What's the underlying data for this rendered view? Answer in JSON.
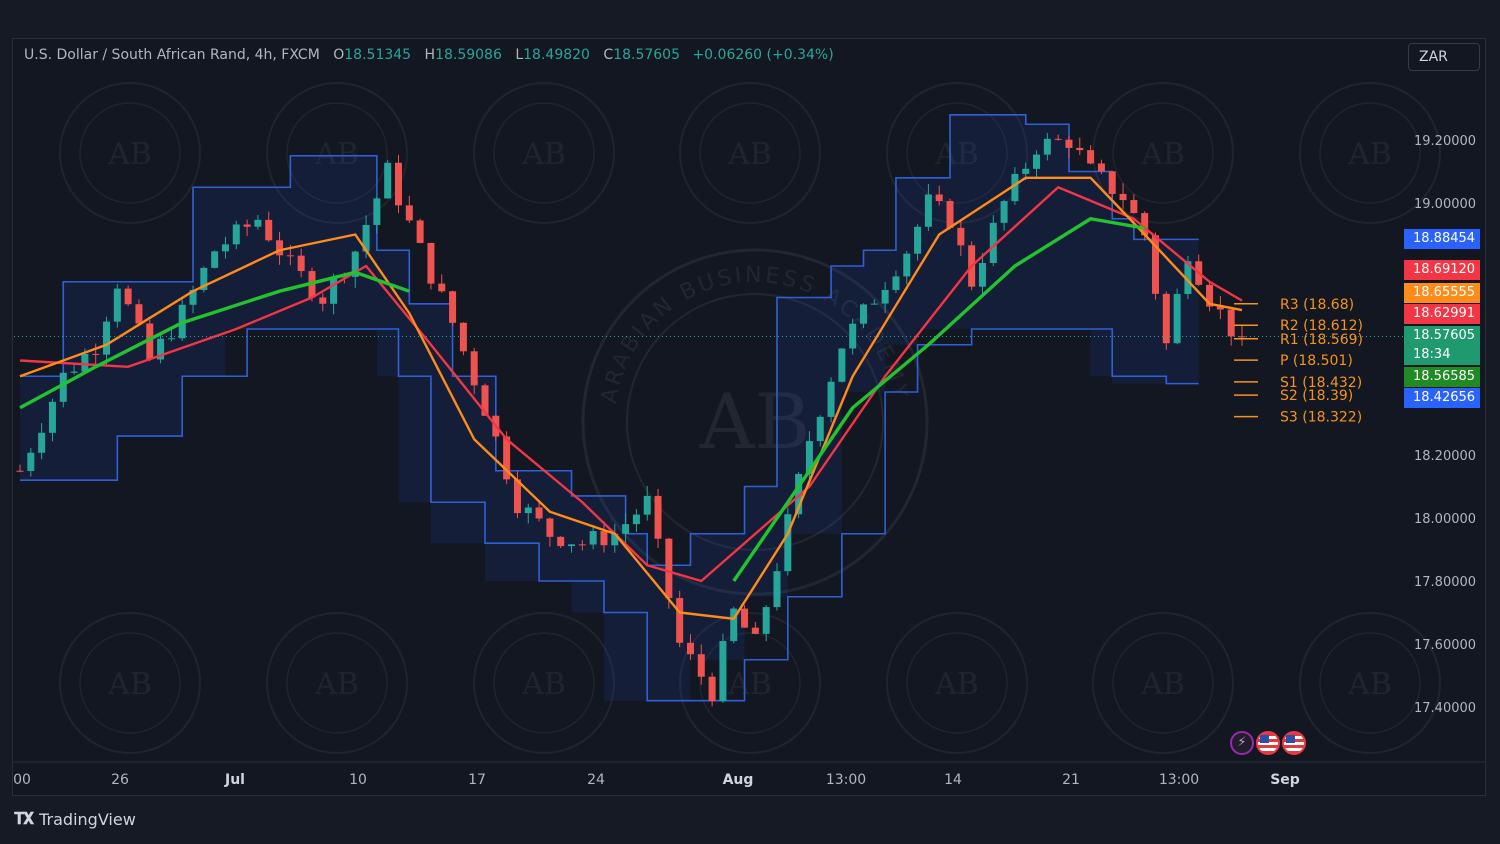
{
  "header": {
    "symbol": "U.S. Dollar / South African Rand, 4h, FXCM",
    "o_label": "O",
    "o": "18.51345",
    "h_label": "H",
    "h": "18.59086",
    "l_label": "L",
    "l": "18.49820",
    "c_label": "C",
    "c": "18.57605",
    "change": "+0.06260 (+0.34%)",
    "currency": "ZAR"
  },
  "footer": {
    "brand": "TradingView"
  },
  "price_tags": [
    {
      "text": "18.88454",
      "color": "#2962ff"
    },
    {
      "text": "18.69120",
      "color": "#f23645"
    },
    {
      "text": "18.65555",
      "color": "#ff8c1a"
    },
    {
      "text": "18.62991",
      "color": "#f23645"
    },
    {
      "text": "18.57605",
      "color": "#1f9a6e"
    },
    {
      "text": "18:34",
      "color": "#1f9a6e"
    },
    {
      "text": "18.56585",
      "color": "#1f8b24"
    },
    {
      "text": "18.42656",
      "color": "#2962ff"
    }
  ],
  "events": [
    {
      "icon": "lightning-icon"
    },
    {
      "icon": "us-flag-icon"
    },
    {
      "icon": "us-flag-icon"
    }
  ],
  "watermark": {
    "text": "ARABIAN BUSINESS ACADEMY",
    "monogram": "AB"
  },
  "chart_data": {
    "type": "candlestick",
    "symbol": "USDZAR",
    "timeframe": "4h",
    "x_ticks": [
      "00",
      "26",
      "Jul",
      "10",
      "17",
      "24",
      "Aug",
      "13:00",
      "14",
      "21",
      "13:00",
      "Sep"
    ],
    "y_ticks": [
      "19.20000",
      "19.00000",
      "18.20000",
      "18.00000",
      "17.80000",
      "17.60000",
      "17.40000"
    ],
    "ylim": [
      17.25,
      19.43
    ],
    "grid": false,
    "close_path": [
      [
        0,
        18.15
      ],
      [
        4,
        18.45
      ],
      [
        7,
        18.55
      ],
      [
        9,
        18.75
      ],
      [
        12,
        18.5
      ],
      [
        15,
        18.65
      ],
      [
        18,
        18.85
      ],
      [
        22,
        18.95
      ],
      [
        25,
        18.8
      ],
      [
        28,
        18.7
      ],
      [
        31,
        18.85
      ],
      [
        34,
        19.1
      ],
      [
        37,
        18.85
      ],
      [
        40,
        18.62
      ],
      [
        43,
        18.35
      ],
      [
        46,
        18.05
      ],
      [
        49,
        17.95
      ],
      [
        52,
        17.92
      ],
      [
        55,
        17.95
      ],
      [
        58,
        18.05
      ],
      [
        61,
        17.6
      ],
      [
        64,
        17.45
      ],
      [
        66,
        17.7
      ],
      [
        68,
        17.6
      ],
      [
        70,
        17.85
      ],
      [
        73,
        18.25
      ],
      [
        76,
        18.55
      ],
      [
        79,
        18.7
      ],
      [
        82,
        18.85
      ],
      [
        84,
        19.0
      ],
      [
        86,
        18.95
      ],
      [
        88,
        18.75
      ],
      [
        91,
        19.0
      ],
      [
        94,
        19.18
      ],
      [
        97,
        19.2
      ],
      [
        99,
        19.1
      ],
      [
        102,
        19.02
      ],
      [
        104,
        18.9
      ],
      [
        106,
        18.55
      ],
      [
        108,
        18.85
      ],
      [
        110,
        18.7
      ],
      [
        112,
        18.6
      ],
      [
        113,
        18.57605
      ]
    ],
    "donchian_channel": {
      "upper": [
        [
          0,
          18.45
        ],
        [
          4,
          18.75
        ],
        [
          13,
          18.75
        ],
        [
          16,
          19.05
        ],
        [
          22,
          19.05
        ],
        [
          25,
          19.15
        ],
        [
          31,
          19.15
        ],
        [
          33,
          18.85
        ],
        [
          36,
          18.68
        ],
        [
          40,
          18.45
        ],
        [
          44,
          18.15
        ],
        [
          51,
          18.07
        ],
        [
          56,
          17.95
        ],
        [
          58,
          17.85
        ],
        [
          62,
          17.95
        ],
        [
          67,
          18.1
        ],
        [
          70,
          18.7
        ],
        [
          75,
          18.8
        ],
        [
          78,
          18.85
        ],
        [
          81,
          19.08
        ],
        [
          86,
          19.28
        ],
        [
          93,
          19.25
        ],
        [
          97,
          19.1
        ],
        [
          101,
          18.95
        ],
        [
          103,
          18.88454
        ],
        [
          109,
          18.88454
        ]
      ],
      "lower": [
        [
          0,
          18.12
        ],
        [
          9,
          18.12
        ],
        [
          9,
          18.26
        ],
        [
          15,
          18.26
        ],
        [
          15,
          18.45
        ],
        [
          19,
          18.45
        ],
        [
          21,
          18.6
        ],
        [
          33,
          18.6
        ],
        [
          35,
          18.45
        ],
        [
          38,
          18.05
        ],
        [
          43,
          17.92
        ],
        [
          48,
          17.8
        ],
        [
          51,
          17.8
        ],
        [
          54,
          17.7
        ],
        [
          58,
          17.42
        ],
        [
          62,
          17.42
        ],
        [
          67,
          17.55
        ],
        [
          71,
          17.75
        ],
        [
          76,
          17.95
        ],
        [
          80,
          18.4
        ],
        [
          83,
          18.55
        ],
        [
          88,
          18.6
        ],
        [
          94,
          18.6
        ],
        [
          99,
          18.6
        ],
        [
          101,
          18.45
        ],
        [
          106,
          18.42656
        ],
        [
          109,
          18.42656
        ]
      ]
    },
    "moving_averages": [
      {
        "color": "#f23645",
        "last": 18.6912,
        "points": [
          [
            0,
            18.5
          ],
          [
            10,
            18.48
          ],
          [
            20,
            18.6
          ],
          [
            27,
            18.7
          ],
          [
            32,
            18.8
          ],
          [
            38,
            18.55
          ],
          [
            45,
            18.25
          ],
          [
            52,
            18.05
          ],
          [
            58,
            17.85
          ],
          [
            63,
            17.8
          ],
          [
            68,
            17.95
          ],
          [
            73,
            18.1
          ],
          [
            80,
            18.45
          ],
          [
            88,
            18.8
          ],
          [
            96,
            19.05
          ],
          [
            103,
            18.95
          ],
          [
            110,
            18.75
          ],
          [
            113,
            18.69
          ]
        ]
      },
      {
        "color": "#ff8c1a",
        "last": 18.65555,
        "points": [
          [
            0,
            18.45
          ],
          [
            8,
            18.55
          ],
          [
            16,
            18.72
          ],
          [
            24,
            18.85
          ],
          [
            31,
            18.9
          ],
          [
            36,
            18.65
          ],
          [
            42,
            18.25
          ],
          [
            49,
            18.02
          ],
          [
            55,
            17.95
          ],
          [
            61,
            17.7
          ],
          [
            66,
            17.68
          ],
          [
            71,
            17.95
          ],
          [
            77,
            18.45
          ],
          [
            85,
            18.9
          ],
          [
            93,
            19.08
          ],
          [
            99,
            19.08
          ],
          [
            104,
            18.9
          ],
          [
            110,
            18.68
          ],
          [
            113,
            18.66
          ]
        ]
      },
      {
        "color": "#22c32e",
        "last": 18.56585,
        "points": [
          [
            0,
            18.35
          ],
          [
            7,
            18.48
          ],
          [
            15,
            18.62
          ],
          [
            24,
            18.72
          ],
          [
            31,
            18.78
          ],
          [
            36,
            18.72
          ]
        ]
      },
      {
        "color": "#22c32e",
        "last": 18.62991,
        "points": [
          [
            66,
            17.8
          ],
          [
            71,
            18.05
          ],
          [
            77,
            18.35
          ],
          [
            84,
            18.55
          ],
          [
            92,
            18.8
          ],
          [
            99,
            18.95
          ],
          [
            104,
            18.92
          ]
        ]
      }
    ],
    "pivot_levels": [
      {
        "label": "R3 (18.68)",
        "value": 18.68
      },
      {
        "label": "R2 (18.612)",
        "value": 18.612
      },
      {
        "label": "R1 (18.569)",
        "value": 18.569
      },
      {
        "label": "P (18.501)",
        "value": 18.501
      },
      {
        "label": "S1 (18.432)",
        "value": 18.432
      },
      {
        "label": "S2 (18.39)",
        "value": 18.39
      },
      {
        "label": "S3 (18.322)",
        "value": 18.322
      }
    ],
    "last_price": 18.57605
  }
}
